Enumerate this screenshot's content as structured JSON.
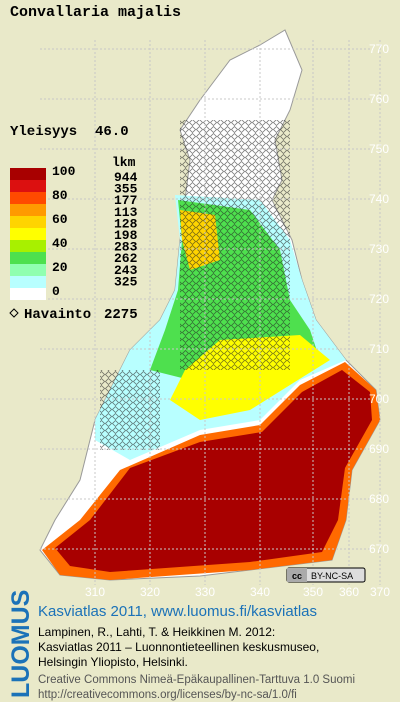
{
  "title": "Convallaria majalis",
  "frequency": {
    "label": "Yleisyys",
    "value": "46.0"
  },
  "legend": {
    "scale_labels": [
      "100",
      "80",
      "60",
      "40",
      "20",
      "0"
    ],
    "count_header": "lkm",
    "counts": [
      "944",
      "355",
      "177",
      "113",
      "128",
      "198",
      "283",
      "262",
      "243",
      "325"
    ],
    "colors": [
      "#a80000",
      "#dc1010",
      "#ff4a00",
      "#ff9a00",
      "#ffd400",
      "#ffff00",
      "#a8f000",
      "#4ee04e",
      "#90ffb0",
      "#b8ffff"
    ]
  },
  "observations": {
    "label": "Havainto",
    "count": "2275"
  },
  "grid_y": [
    "770",
    "760",
    "750",
    "740",
    "730",
    "720",
    "710",
    "700",
    "690",
    "680",
    "670"
  ],
  "grid_x": [
    "310",
    "320",
    "330",
    "340",
    "350",
    "360",
    "370"
  ],
  "license_badge": "BY-NC-SA",
  "logo": "LUOMUS",
  "footer": {
    "link": "Kasviatlas 2011, www.luomus.fi/kasviatlas",
    "citation": [
      "Lampinen, R., Lahti, T. & Heikkinen M. 2012:",
      "Kasviatlas 2011 – Luonnontieteellinen keskusmuseo,",
      "Helsingin Yliopisto, Helsinki."
    ],
    "license": [
      "Creative Commons Nimeä-Epäkaupallinen-Tarttuva 1.0 Suomi",
      "http://creativecommons.org/licenses/by-nc-sa/1.0/fi"
    ]
  }
}
